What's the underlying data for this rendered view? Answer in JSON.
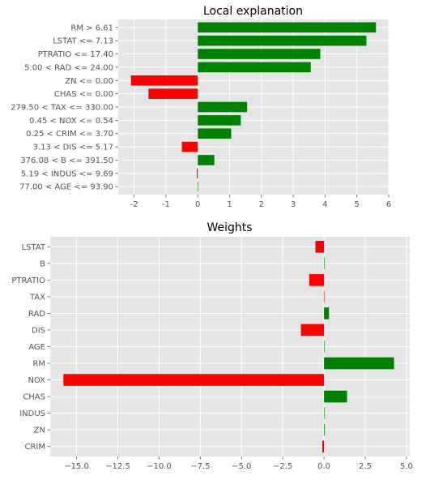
{
  "chart_data": [
    {
      "type": "bar",
      "orientation": "horizontal",
      "title": "Local explanation",
      "xlabel": "",
      "ylabel": "",
      "categories": [
        "RM > 6.61",
        "LSTAT <= 7.13",
        "PTRATIO <= 17.40",
        "5.00 < RAD <= 24.00",
        "ZN <= 0.00",
        "CHAS <= 0.00",
        "279.50 < TAX <= 330.00",
        "0.45 < NOX <= 0.54",
        "0.25 < CRIM <= 3.70",
        "3.13 < DIS <= 5.17",
        "376.08 < B <= 391.50",
        "5.19 < INDUS <= 9.69",
        "77.00 < AGE <= 93.90"
      ],
      "values": [
        5.6,
        5.3,
        3.85,
        3.55,
        -2.1,
        -1.55,
        1.55,
        1.35,
        1.05,
        -0.5,
        0.52,
        -0.03,
        0.0
      ],
      "xlim": [
        -2.5,
        6
      ],
      "xticks": [
        -2,
        -1,
        0,
        1,
        2,
        3,
        4,
        5,
        6
      ],
      "grid": true,
      "colors": {
        "positive": "#008000",
        "negative": "#ff0000",
        "background": "#e5e5e5",
        "grid": "#ffffff"
      }
    },
    {
      "type": "bar",
      "orientation": "horizontal",
      "title": "Weights",
      "xlabel": "",
      "ylabel": "",
      "categories": [
        "LSTAT",
        "B",
        "PTRATIO",
        "TAX",
        "RAD",
        "DIS",
        "AGE",
        "RM",
        "NOX",
        "CHAS",
        "INDUS",
        "ZN",
        "CRIM"
      ],
      "values": [
        -0.52,
        0.01,
        -0.9,
        -0.01,
        0.3,
        -1.4,
        0.0,
        4.25,
        -15.8,
        1.4,
        0.02,
        0.04,
        -0.1
      ],
      "xlim": [
        -16.6,
        5.2
      ],
      "xticks": [
        "−15.0",
        "−12.5",
        "−10.0",
        "−7.5",
        "−5.0",
        "−2.5",
        "0.0",
        "2.5",
        "5.0"
      ],
      "xtick_values": [
        -15,
        -12.5,
        -10,
        -7.5,
        -5,
        -2.5,
        0,
        2.5,
        5
      ],
      "grid": true,
      "colors": {
        "positive": "#008000",
        "negative": "#ff0000",
        "background": "#e5e5e5",
        "grid": "#ffffff"
      }
    }
  ]
}
